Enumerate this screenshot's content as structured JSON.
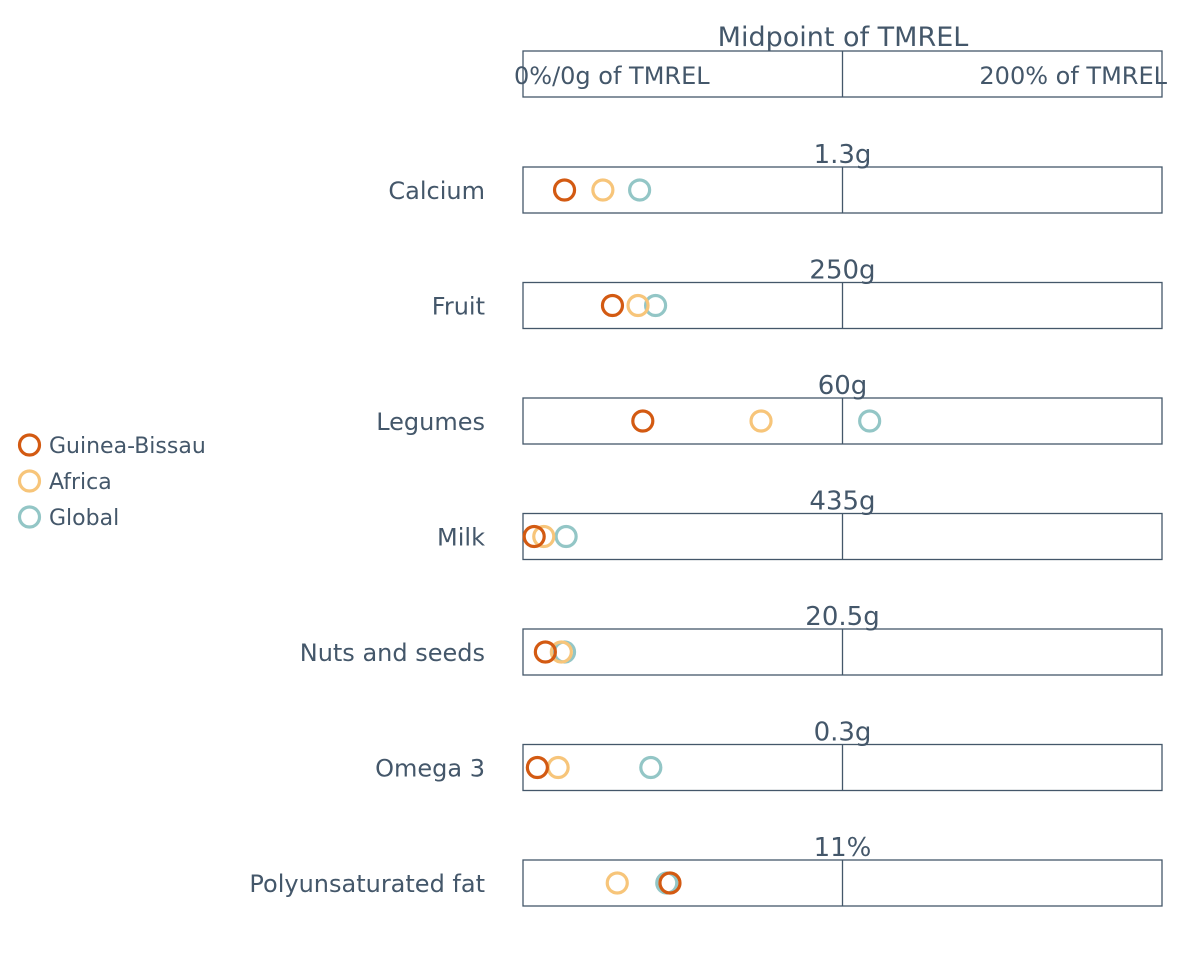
{
  "chart_data": {
    "type": "scatter",
    "title": "",
    "header": {
      "title": "Midpoint of TMREL",
      "left_label": "0%/0g of TMREL",
      "right_label": "200% of TMREL"
    },
    "xlim": [
      0,
      200
    ],
    "x_unit": "% of TMREL",
    "series": [
      {
        "name": "Guinea-Bissau",
        "color": "#d35a12"
      },
      {
        "name": "Africa",
        "color": "#f7c57a"
      },
      {
        "name": "Global",
        "color": "#93c6c6"
      }
    ],
    "legend_position": "left",
    "rows": [
      {
        "label": "Calcium",
        "target": "1.3g",
        "values": [
          13,
          25,
          36.5
        ]
      },
      {
        "label": "Fruit",
        "target": "250g",
        "values": [
          28,
          36,
          41.5
        ]
      },
      {
        "label": "Legumes",
        "target": "60g",
        "values": [
          37.5,
          74.5,
          108.5
        ]
      },
      {
        "label": "Milk",
        "target": "435g",
        "values": [
          3.5,
          6.5,
          13.5
        ]
      },
      {
        "label": "Nuts and seeds",
        "target": "20.5g",
        "values": [
          7,
          12,
          13
        ]
      },
      {
        "label": "Omega 3",
        "target": "0.3g",
        "values": [
          4.5,
          11,
          40
        ]
      },
      {
        "label": "Polyunsaturated fat",
        "target": "11%",
        "values": [
          46,
          29.5,
          45
        ]
      }
    ]
  }
}
